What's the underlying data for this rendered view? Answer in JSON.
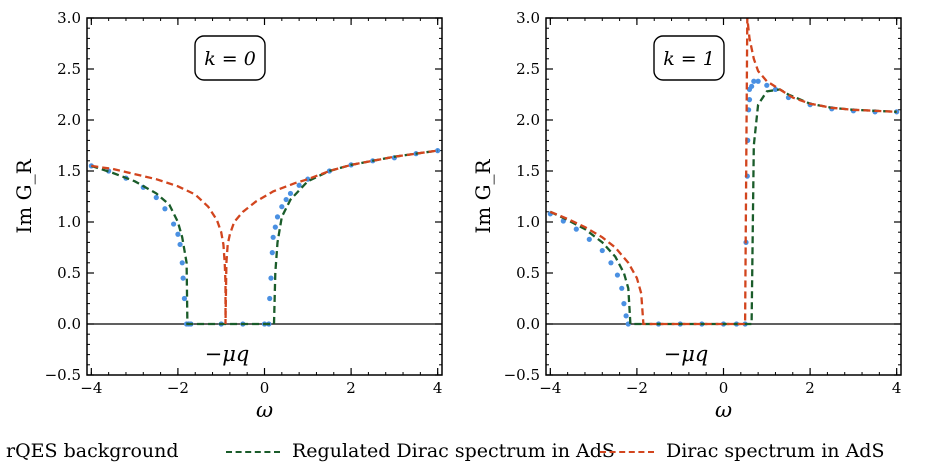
{
  "chart_data": [
    {
      "type": "line",
      "annotation": "k = 0",
      "marker_label": "−μq",
      "xlabel": "ω",
      "ylabel": "Im G_R",
      "xlim": [
        -4.1,
        4.1
      ],
      "ylim": [
        -0.5,
        3.0
      ],
      "xticks": [
        -4,
        -2,
        0,
        2,
        4
      ],
      "yticks": [
        -0.5,
        0.0,
        0.5,
        1.0,
        1.5,
        2.0,
        2.5,
        3.0
      ],
      "series": [
        {
          "name": "rQES background",
          "style": "scatter",
          "x": [
            -4.0,
            -3.6,
            -3.2,
            -2.8,
            -2.5,
            -2.3,
            -2.1,
            -2.0,
            -1.95,
            -1.9,
            -1.88,
            -1.85,
            -1.8,
            -1.75,
            -1.7,
            -1.0,
            -0.5,
            0.0,
            0.1,
            0.12,
            0.15,
            0.18,
            0.2,
            0.25,
            0.3,
            0.4,
            0.5,
            0.6,
            0.8,
            1.0,
            1.5,
            2.0,
            2.5,
            3.0,
            3.5,
            4.0
          ],
          "y": [
            1.55,
            1.5,
            1.43,
            1.34,
            1.24,
            1.13,
            0.98,
            0.88,
            0.78,
            0.6,
            0.45,
            0.25,
            0.0,
            0.0,
            0.0,
            0.0,
            0.0,
            0.0,
            0.0,
            0.25,
            0.45,
            0.7,
            0.85,
            0.95,
            1.05,
            1.15,
            1.22,
            1.28,
            1.36,
            1.42,
            1.5,
            1.56,
            1.6,
            1.63,
            1.67,
            1.7
          ]
        },
        {
          "name": "Regulated Dirac spectrum in AdS",
          "style": "dashed",
          "x": [
            -4.0,
            -3.5,
            -3.0,
            -2.5,
            -2.2,
            -2.0,
            -1.9,
            -1.8,
            -1.78,
            -1.78,
            0.22,
            0.22,
            0.25,
            0.3,
            0.4,
            0.6,
            1.0,
            1.5,
            2.0,
            3.0,
            4.0
          ],
          "y": [
            1.55,
            1.48,
            1.4,
            1.28,
            1.17,
            1.0,
            0.85,
            0.6,
            0.0,
            0.0,
            0.0,
            0.0,
            0.5,
            0.8,
            1.05,
            1.22,
            1.4,
            1.5,
            1.56,
            1.64,
            1.7
          ]
        },
        {
          "name": "Dirac spectrum in AdS",
          "style": "dashed",
          "x": [
            -4.0,
            -3.5,
            -3.0,
            -2.5,
            -2.0,
            -1.6,
            -1.3,
            -1.1,
            -1.0,
            -0.95,
            -0.92,
            -0.9,
            -0.9,
            -0.88,
            -0.85,
            -0.8,
            -0.7,
            -0.5,
            -0.2,
            0.2,
            0.7,
            1.0,
            1.5,
            2.0,
            3.0,
            4.0
          ],
          "y": [
            1.55,
            1.52,
            1.47,
            1.42,
            1.35,
            1.27,
            1.15,
            1.02,
            0.9,
            0.78,
            0.6,
            0.4,
            0.0,
            0.6,
            0.78,
            0.88,
            1.0,
            1.1,
            1.2,
            1.3,
            1.38,
            1.42,
            1.5,
            1.56,
            1.64,
            1.7
          ]
        }
      ]
    },
    {
      "type": "line",
      "annotation": "k = 1",
      "marker_label": "−μq",
      "xlabel": "ω",
      "ylabel": "Im G_R",
      "xlim": [
        -4.1,
        4.1
      ],
      "ylim": [
        -0.5,
        3.0
      ],
      "xticks": [
        -4,
        -2,
        0,
        2,
        4
      ],
      "yticks": [
        -0.5,
        0.0,
        0.5,
        1.0,
        1.5,
        2.0,
        2.5,
        3.0
      ],
      "series": [
        {
          "name": "rQES background",
          "style": "scatter",
          "x": [
            -4.0,
            -3.7,
            -3.4,
            -3.1,
            -2.8,
            -2.6,
            -2.45,
            -2.35,
            -2.3,
            -2.25,
            -2.2,
            -1.5,
            -1.0,
            -0.5,
            0.0,
            0.3,
            0.5,
            0.52,
            0.55,
            0.56,
            0.58,
            0.6,
            0.6,
            0.65,
            0.7,
            0.8,
            1.0,
            1.2,
            1.5,
            2.0,
            2.5,
            3.0,
            3.5,
            4.0
          ],
          "y": [
            1.08,
            1.01,
            0.93,
            0.83,
            0.72,
            0.6,
            0.48,
            0.35,
            0.2,
            0.08,
            0.0,
            0.0,
            0.0,
            0.0,
            0.0,
            0.0,
            0.0,
            0.8,
            1.45,
            1.8,
            2.1,
            2.3,
            2.2,
            2.33,
            2.38,
            2.38,
            2.34,
            2.3,
            2.22,
            2.15,
            2.11,
            2.09,
            2.08,
            2.08
          ]
        },
        {
          "name": "Regulated Dirac spectrum in AdS",
          "style": "dashed",
          "x": [
            -4.0,
            -3.6,
            -3.2,
            -2.8,
            -2.5,
            -2.3,
            -2.2,
            -2.15,
            -2.15,
            0.65,
            0.65,
            0.7,
            0.8,
            1.0,
            1.3,
            1.5,
            2.0,
            2.5,
            3.0,
            4.0
          ],
          "y": [
            1.1,
            1.02,
            0.93,
            0.8,
            0.66,
            0.5,
            0.35,
            0.0,
            0.0,
            0.0,
            0.0,
            1.75,
            2.15,
            2.28,
            2.3,
            2.25,
            2.16,
            2.12,
            2.1,
            2.08
          ]
        },
        {
          "name": "Dirac spectrum in AdS",
          "style": "dashed",
          "x": [
            -4.0,
            -3.6,
            -3.2,
            -2.8,
            -2.5,
            -2.2,
            -2.0,
            -1.9,
            -1.85,
            -1.85,
            0.5,
            0.5,
            0.55,
            0.6,
            0.7,
            0.8,
            1.0,
            1.3,
            1.6,
            2.0,
            2.5,
            3.0,
            3.5,
            4.0
          ],
          "y": [
            1.1,
            1.03,
            0.95,
            0.85,
            0.75,
            0.6,
            0.45,
            0.3,
            0.0,
            0.0,
            0.0,
            0.0,
            3.0,
            2.8,
            2.6,
            2.48,
            2.38,
            2.3,
            2.22,
            2.16,
            2.12,
            2.1,
            2.09,
            2.08
          ]
        }
      ]
    }
  ],
  "legend": [
    {
      "label": "rQES background",
      "color": "#4a90e2"
    },
    {
      "label": "Regulated Dirac spectrum in AdS",
      "color": "#1a5c2a"
    },
    {
      "label": "Dirac spectrum in AdS",
      "color": "#d2451e"
    }
  ],
  "colors": {
    "scatter": "#4a90e2",
    "regulated": "#1a5c2a",
    "dirac": "#d2451e"
  }
}
